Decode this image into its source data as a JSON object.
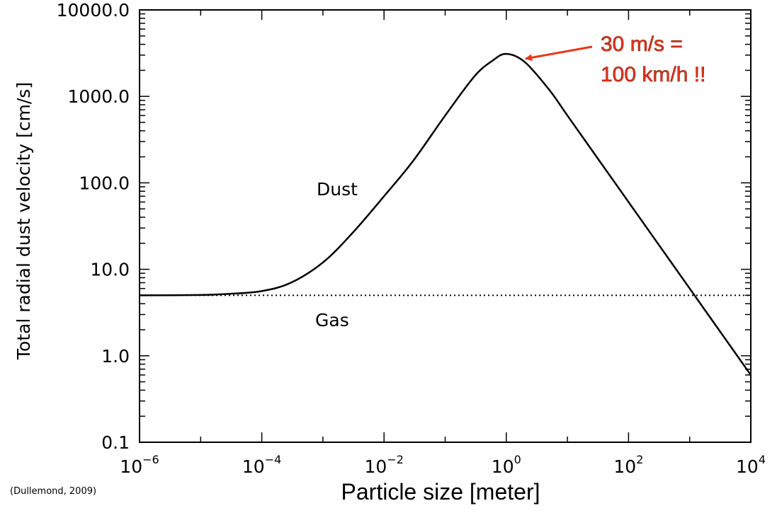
{
  "chart_data": {
    "type": "line",
    "xscale": "log",
    "yscale": "log",
    "xlim": [
      1e-06,
      10000.0
    ],
    "ylim": [
      0.1,
      10000
    ],
    "xlabel": "Particle size [meter]",
    "ylabel": "Total radial dust velocity [cm/s]",
    "x_ticks": [
      {
        "base": "10",
        "exp": "−6",
        "value": 1e-06
      },
      {
        "base": "10",
        "exp": "−4",
        "value": 0.0001
      },
      {
        "base": "10",
        "exp": "−2",
        "value": 0.01
      },
      {
        "base": "10",
        "exp": "0",
        "value": 1
      },
      {
        "base": "10",
        "exp": "2",
        "value": 100
      },
      {
        "base": "10",
        "exp": "4",
        "value": 10000
      }
    ],
    "y_ticks": [
      {
        "label": "0.1",
        "value": 0.1
      },
      {
        "label": "1.0",
        "value": 1
      },
      {
        "label": "10.0",
        "value": 10
      },
      {
        "label": "100.0",
        "value": 100
      },
      {
        "label": "1000.0",
        "value": 1000
      },
      {
        "label": "10000.0",
        "value": 10000
      }
    ],
    "series": [
      {
        "name": "Dust",
        "style": "solid",
        "x": [
          1e-06,
          1e-05,
          3e-05,
          0.0001,
          0.0003,
          0.001,
          0.003,
          0.01,
          0.03,
          0.1,
          0.3,
          0.6,
          1,
          2,
          5,
          10,
          30,
          100,
          300,
          1000,
          3000,
          10000
        ],
        "y": [
          5.0,
          5.05,
          5.2,
          5.6,
          7.0,
          12,
          26,
          70,
          180,
          600,
          1700,
          2600,
          3100,
          2500,
          1200,
          600,
          200,
          60,
          20,
          6,
          2.0,
          0.6
        ]
      },
      {
        "name": "Gas",
        "style": "dotted",
        "x": [
          1e-06,
          10000
        ],
        "y": [
          5.0,
          5.0
        ]
      }
    ],
    "annotations": [
      {
        "text_line1": "30 m/s =",
        "text_line2": "100 km/h !!",
        "color": "#e8361c",
        "points_to": {
          "x": 1,
          "y": 3100
        }
      }
    ]
  },
  "credit": "(Dullemond, 2009)"
}
